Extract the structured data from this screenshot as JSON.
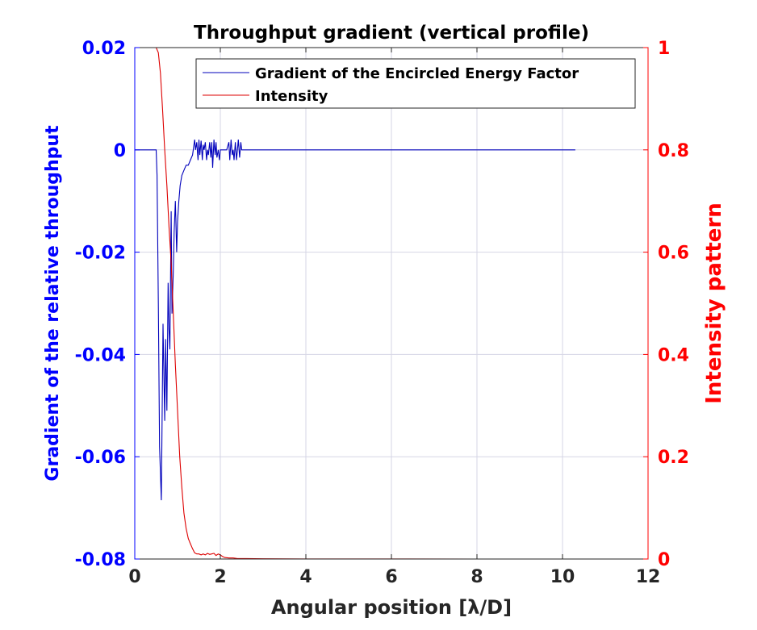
{
  "chart_data": {
    "type": "line",
    "title": "Throughput gradient (vertical profile)",
    "xlabel": "Angular position [λ/D]",
    "ylabel_left": "Gradient of the relative throughput",
    "ylabel_right": "Intensity pattern",
    "xlim": [
      0,
      12
    ],
    "ylim_left": [
      -0.08,
      0.02
    ],
    "ylim_right": [
      0,
      1
    ],
    "xticks": [
      "0",
      "2",
      "4",
      "6",
      "8",
      "10",
      "12"
    ],
    "yticks_left": [
      "-0.08",
      "-0.06",
      "-0.04",
      "-0.02",
      "0",
      "0.02"
    ],
    "yticks_right": [
      "0",
      "0.2",
      "0.4",
      "0.6",
      "0.8",
      "1"
    ],
    "grid": true,
    "legend_position": "top-right",
    "colors": {
      "left_axis": "#0000ff",
      "right_axis": "#ff0000",
      "grid": "#d5d5e5",
      "series_blue": "#0000bb",
      "series_red": "#dd0000"
    },
    "series": [
      {
        "name": "Gradient of the Encircled Energy Factor",
        "axis": "left",
        "x": [
          0,
          0.5,
          0.52,
          0.55,
          0.58,
          0.62,
          0.66,
          0.7,
          0.72,
          0.75,
          0.78,
          0.8,
          0.82,
          0.85,
          0.87,
          0.9,
          0.92,
          0.95,
          0.98,
          1.0,
          1.03,
          1.06,
          1.1,
          1.15,
          1.2,
          1.25,
          1.3,
          1.35,
          1.4,
          1.42,
          1.45,
          1.48,
          1.5,
          1.52,
          1.55,
          1.58,
          1.6,
          1.62,
          1.65,
          1.68,
          1.7,
          1.72,
          1.75,
          1.78,
          1.8,
          1.82,
          1.85,
          1.88,
          1.9,
          1.92,
          1.95,
          1.98,
          2.0,
          2.05,
          2.1,
          2.15,
          2.2,
          2.22,
          2.25,
          2.28,
          2.3,
          2.32,
          2.35,
          2.38,
          2.4,
          2.42,
          2.45,
          2.48,
          2.5,
          2.6,
          3.0,
          4.0,
          6.0,
          8.0,
          10.3
        ],
        "values": [
          0,
          0,
          -0.005,
          -0.03,
          -0.058,
          -0.0685,
          -0.034,
          -0.053,
          -0.037,
          -0.051,
          -0.026,
          -0.035,
          -0.039,
          -0.012,
          -0.032,
          -0.024,
          -0.016,
          -0.01,
          -0.02,
          -0.014,
          -0.01,
          -0.007,
          -0.005,
          -0.004,
          -0.003,
          -0.003,
          -0.002,
          -0.001,
          0.002,
          0.0,
          0.0015,
          -0.002,
          0.002,
          -0.001,
          0.0018,
          -0.002,
          0.001,
          0.0,
          0.0015,
          -0.002,
          0.0,
          -0.001,
          0.0015,
          -0.0015,
          0.0015,
          -0.0035,
          0.002,
          -0.001,
          0.0015,
          -0.0015,
          0.0,
          -0.002,
          0.0,
          0.0,
          0.0,
          0.0,
          0.0015,
          -0.002,
          0.002,
          -0.001,
          0.0,
          -0.002,
          0.0015,
          -0.002,
          0.0,
          0.002,
          -0.0015,
          0.0015,
          0.0,
          0.0,
          0.0,
          0.0,
          0.0,
          0.0,
          0.0
        ]
      },
      {
        "name": "Intensity",
        "axis": "right",
        "x": [
          0,
          0.4,
          0.5,
          0.55,
          0.6,
          0.65,
          0.7,
          0.75,
          0.8,
          0.85,
          0.9,
          0.95,
          1.0,
          1.05,
          1.1,
          1.15,
          1.2,
          1.25,
          1.3,
          1.35,
          1.4,
          1.45,
          1.5,
          1.55,
          1.6,
          1.65,
          1.7,
          1.75,
          1.8,
          1.85,
          1.9,
          1.95,
          2.0,
          2.05,
          2.1,
          2.2,
          2.3,
          2.4,
          2.5,
          2.6,
          3.0,
          4.0,
          6.0,
          8.0,
          10.3
        ],
        "values": [
          1.0,
          1.0,
          1.0,
          0.99,
          0.95,
          0.88,
          0.8,
          0.73,
          0.65,
          0.58,
          0.48,
          0.38,
          0.29,
          0.2,
          0.14,
          0.09,
          0.06,
          0.04,
          0.03,
          0.02,
          0.012,
          0.01,
          0.01,
          0.008,
          0.01,
          0.008,
          0.011,
          0.009,
          0.01,
          0.011,
          0.007,
          0.01,
          0.008,
          0.005,
          0.003,
          0.002,
          0.002,
          0.001,
          0.001,
          0.001,
          0.0005,
          0.0002,
          0.0001,
          0.0,
          0.0
        ]
      }
    ]
  }
}
